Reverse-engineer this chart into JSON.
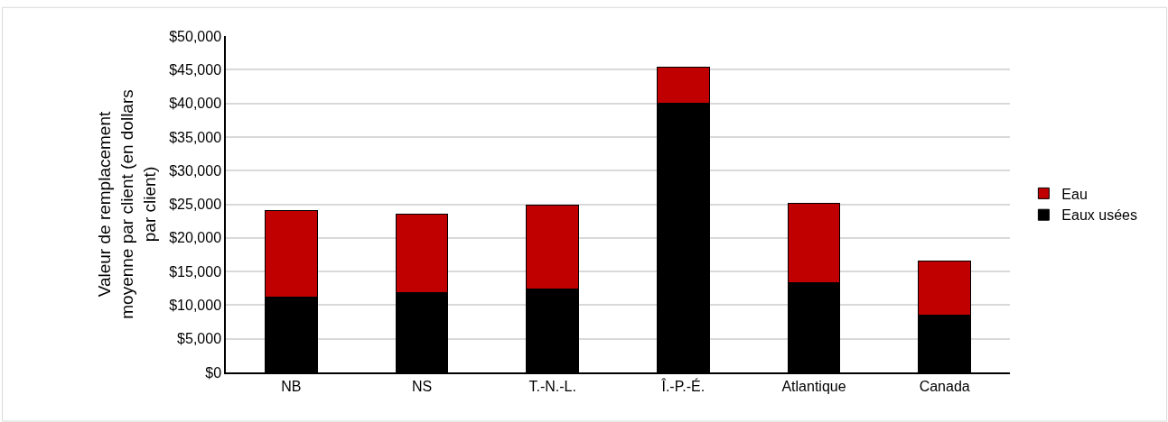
{
  "chart_data": {
    "type": "bar",
    "stacked": true,
    "ylabel": "Valeur de remplacement\nmoyenne par client (en dollars\npar client)",
    "categories": [
      "NB",
      "NS",
      "T.-N.-L.",
      "Î.-P.-É.",
      "Atlantique",
      "Canada"
    ],
    "series": [
      {
        "name": "Eaux usées",
        "color": "#000000",
        "values": [
          11200,
          11900,
          12400,
          40000,
          13300,
          8500
        ]
      },
      {
        "name": "Eau",
        "color": "#c00000",
        "values": [
          12800,
          11600,
          12400,
          5400,
          11800,
          8100
        ]
      }
    ],
    "ylim": [
      0,
      50000
    ],
    "yticks": [
      {
        "value": 0,
        "label": "$0"
      },
      {
        "value": 5000,
        "label": "$5,000"
      },
      {
        "value": 10000,
        "label": "$10,000"
      },
      {
        "value": 15000,
        "label": "$15,000"
      },
      {
        "value": 20000,
        "label": "$20,000"
      },
      {
        "value": 25000,
        "label": "$25,000"
      },
      {
        "value": 30000,
        "label": "$30,000"
      },
      {
        "value": 35000,
        "label": "$35,000"
      },
      {
        "value": 40000,
        "label": "$40,000"
      },
      {
        "value": 45000,
        "label": "$45,000"
      },
      {
        "value": 50000,
        "label": "$50,000"
      }
    ],
    "grid": "y",
    "legend": "right"
  }
}
